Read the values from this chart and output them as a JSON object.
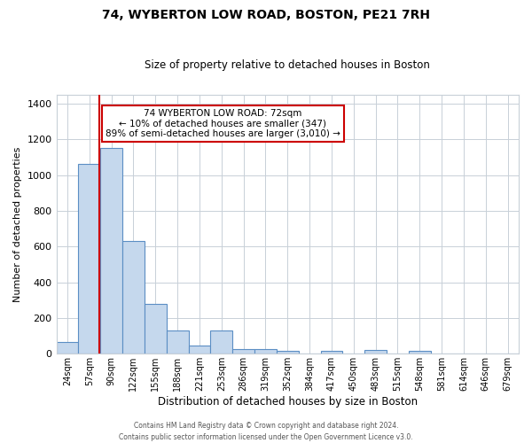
{
  "title": "74, WYBERTON LOW ROAD, BOSTON, PE21 7RH",
  "subtitle": "Size of property relative to detached houses in Boston",
  "xlabel": "Distribution of detached houses by size in Boston",
  "ylabel": "Number of detached properties",
  "bar_labels": [
    "24sqm",
    "57sqm",
    "90sqm",
    "122sqm",
    "155sqm",
    "188sqm",
    "221sqm",
    "253sqm",
    "286sqm",
    "319sqm",
    "352sqm",
    "384sqm",
    "417sqm",
    "450sqm",
    "483sqm",
    "515sqm",
    "548sqm",
    "581sqm",
    "614sqm",
    "646sqm",
    "679sqm"
  ],
  "bar_values": [
    65,
    1065,
    1155,
    630,
    280,
    130,
    45,
    130,
    25,
    25,
    15,
    0,
    15,
    0,
    20,
    0,
    15,
    0,
    0,
    0,
    0
  ],
  "bar_color": "#c5d8ed",
  "bar_edge_color": "#5b8ec4",
  "vline_color": "#cc0000",
  "ylim": [
    0,
    1450
  ],
  "yticks": [
    0,
    200,
    400,
    600,
    800,
    1000,
    1200,
    1400
  ],
  "annotation_title": "74 WYBERTON LOW ROAD: 72sqm",
  "annotation_line1": "← 10% of detached houses are smaller (347)",
  "annotation_line2": "89% of semi-detached houses are larger (3,010) →",
  "annotation_box_color": "#ffffff",
  "annotation_box_edgecolor": "#cc0000",
  "footer1": "Contains HM Land Registry data © Crown copyright and database right 2024.",
  "footer2": "Contains public sector information licensed under the Open Government Licence v3.0.",
  "bg_color": "#ffffff",
  "grid_color": "#c8d0d8"
}
